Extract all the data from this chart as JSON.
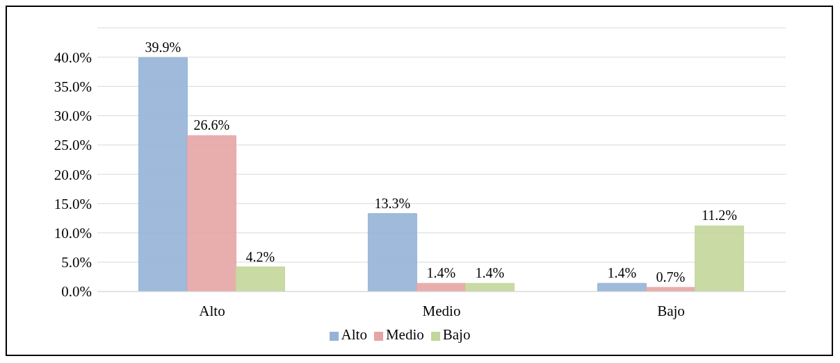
{
  "chart_data": {
    "type": "bar",
    "categories": [
      "Alto",
      "Medio",
      "Bajo"
    ],
    "series": [
      {
        "name": "Alto",
        "color": "#95b3d7",
        "values": [
          39.9,
          13.3,
          1.4
        ],
        "value_labels": [
          "39.9%",
          "13.3%",
          "1.4%"
        ]
      },
      {
        "name": "Medio",
        "color": "#e6a5a5",
        "values": [
          26.6,
          1.4,
          0.7
        ],
        "value_labels": [
          "26.6%",
          "1.4%",
          "0.7%"
        ]
      },
      {
        "name": "Bajo",
        "color": "#c3d69b",
        "values": [
          4.2,
          1.4,
          11.2
        ],
        "value_labels": [
          "4.2%",
          "1.4%",
          "11.2%"
        ]
      }
    ],
    "ylim": [
      0,
      45
    ],
    "yticks": [
      {
        "value": 0,
        "label": "0.0%"
      },
      {
        "value": 5,
        "label": "5.0%"
      },
      {
        "value": 10,
        "label": "10.0%"
      },
      {
        "value": 15,
        "label": "15.0%"
      },
      {
        "value": 20,
        "label": "20.0%"
      },
      {
        "value": 25,
        "label": "25.0%"
      },
      {
        "value": 30,
        "label": "30.0%"
      },
      {
        "value": 35,
        "label": "35.0%"
      },
      {
        "value": 40,
        "label": "40.0%"
      },
      {
        "value": 45,
        "label": null
      }
    ],
    "grid": "y",
    "legend": "bottom"
  }
}
